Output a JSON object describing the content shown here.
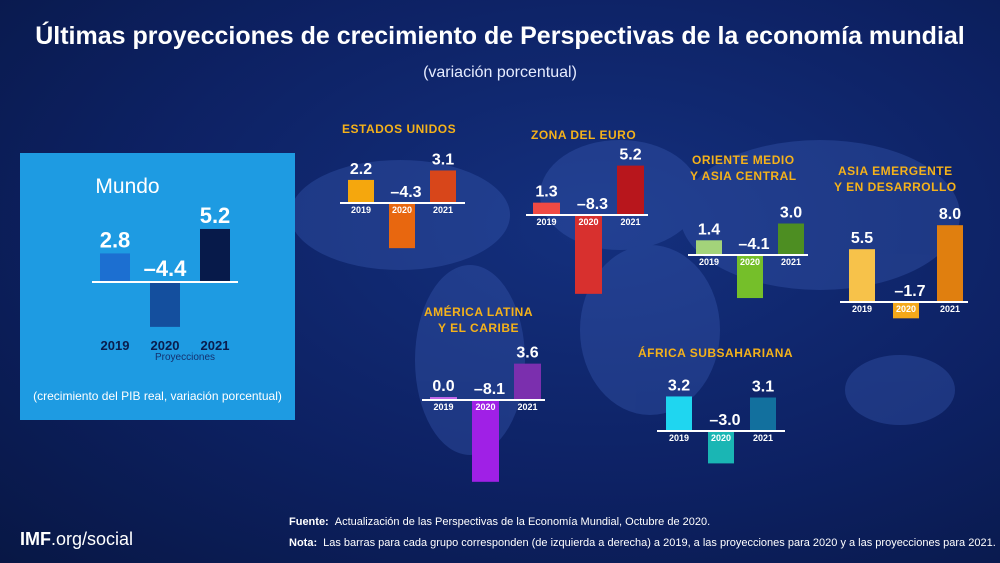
{
  "title": "Últimas proyecciones de crecimiento de Perspectivas de la economía mundial",
  "subtitle": "(variación porcentual)",
  "world": {
    "title": "Mundo",
    "note": "(crecimiento del PIB real, variación porcentual)",
    "projections_label": "Proyecciones"
  },
  "footer": {
    "logo_bold": "IMF",
    "logo_rest": ".org/social",
    "source_label": "Fuente:",
    "source_text": "Actualización de las Perspectivas de la Economía Mundial, Octubre de 2020.",
    "note_label": "Nota:",
    "note_text": "Las barras para cada grupo corresponden (de izquierda a derecha) a 2019, a las proyecciones para 2020 y a las proyecciones para 2021."
  },
  "chart_data": [
    {
      "type": "bar",
      "name": "Mundo",
      "categories": [
        "2019",
        "2020",
        "2021"
      ],
      "values": [
        2.8,
        -4.4,
        5.2
      ],
      "labels": [
        "2.8",
        "–4.4",
        "5.2"
      ],
      "colors": [
        "#1c6fd1",
        "#144f9e",
        "#071a4a"
      ]
    },
    {
      "type": "bar",
      "name": "ESTADOS UNIDOS",
      "categories": [
        "2019",
        "2020",
        "2021"
      ],
      "values": [
        2.2,
        -4.3,
        3.1
      ],
      "labels": [
        "2.2",
        "–4.3",
        "3.1"
      ],
      "colors": [
        "#f5a70d",
        "#e8670f",
        "#d8461a"
      ]
    },
    {
      "type": "bar",
      "name": "ZONA DEL EURO",
      "categories": [
        "2019",
        "2020",
        "2021"
      ],
      "values": [
        1.3,
        -8.3,
        5.2
      ],
      "labels": [
        "1.3",
        "–8.3",
        "5.2"
      ],
      "colors": [
        "#f04a43",
        "#d8302e",
        "#b8161c"
      ]
    },
    {
      "type": "bar",
      "name": "ORIENTE MEDIO Y ASIA CENTRAL",
      "categories": [
        "2019",
        "2020",
        "2021"
      ],
      "values": [
        1.4,
        -4.1,
        3.0
      ],
      "labels": [
        "1.4",
        "–4.1",
        "3.0"
      ],
      "colors": [
        "#a3d37a",
        "#75bf2a",
        "#4d8e22"
      ]
    },
    {
      "type": "bar",
      "name": "ASIA EMERGENTE Y EN DESARROLLO",
      "categories": [
        "2019",
        "2020",
        "2021"
      ],
      "values": [
        5.5,
        -1.7,
        8.0
      ],
      "labels": [
        "5.5",
        "–1.7",
        "8.0"
      ],
      "colors": [
        "#f7c24a",
        "#f4a81a",
        "#e07f0f"
      ]
    },
    {
      "type": "bar",
      "name": "AMÉRICA LATINA Y EL CARIBE",
      "categories": [
        "2019",
        "2020",
        "2021"
      ],
      "values": [
        0.0,
        -8.1,
        3.6
      ],
      "labels": [
        "0.0",
        "–8.1",
        "3.6"
      ],
      "colors": [
        "#c066e8",
        "#a020e6",
        "#7b2fae"
      ]
    },
    {
      "type": "bar",
      "name": "ÁFRICA SUBSAHARIANA",
      "categories": [
        "2019",
        "2020",
        "2021"
      ],
      "values": [
        3.2,
        -3.0,
        3.1
      ],
      "labels": [
        "3.2",
        "–3.0",
        "3.1"
      ],
      "colors": [
        "#1fd6f0",
        "#1ab6b4",
        "#12709e"
      ]
    }
  ]
}
